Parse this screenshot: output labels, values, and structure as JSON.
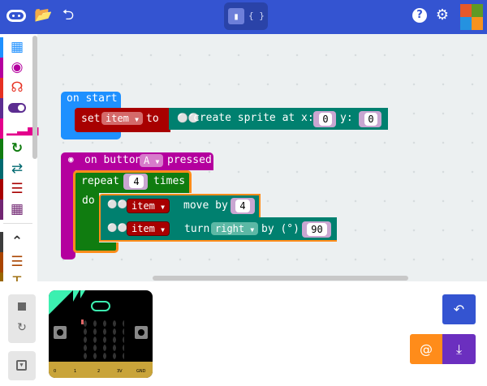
{
  "header": {
    "icons": [
      "microbit-logo-icon",
      "folder-open-icon",
      "share-icon",
      "help-icon",
      "gear-icon",
      "microsoft-logo-icon"
    ],
    "editor_toggle": {
      "blocks_icon": "puzzle-icon",
      "code_label": "{ }",
      "selected": "blocks"
    },
    "brand_colors": [
      "#f25022",
      "#7fba00",
      "#00a4ef",
      "#ffb900"
    ],
    "color": "#3454d1"
  },
  "toolbox": {
    "categories": [
      {
        "name": "Basic",
        "icon": "grid-icon",
        "color": "#1e90ff"
      },
      {
        "name": "Input",
        "icon": "target-icon",
        "color": "#b4009e"
      },
      {
        "name": "Music",
        "icon": "headphones-icon",
        "color": "#e63022"
      },
      {
        "name": "Led",
        "icon": "toggle-icon",
        "color": "#5c2d91"
      },
      {
        "name": "Radio",
        "icon": "signal-icon",
        "color": "#e3008c"
      },
      {
        "name": "Loops",
        "icon": "refresh-icon",
        "color": "#107c10"
      },
      {
        "name": "Logic",
        "icon": "shuffle-icon",
        "color": "#006970"
      },
      {
        "name": "Variables",
        "icon": "lines-icon",
        "color": "#a80000"
      },
      {
        "name": "Math",
        "icon": "calculator-icon",
        "color": "#712672"
      },
      {
        "name": "Advanced",
        "icon": "chevron-up-icon",
        "color": "#3c3c3c"
      },
      {
        "name": "Arrays",
        "icon": "numbered-list-icon",
        "color": "#a94400"
      },
      {
        "name": "Text",
        "icon": "text-icon",
        "color": "#996600"
      }
    ]
  },
  "blocks": {
    "on_start": {
      "label": "on start",
      "color": "#1e90ff"
    },
    "set": {
      "set": "set",
      "var": "item",
      "to": "to",
      "color": "#a80000"
    },
    "create_sprite": {
      "label": "create sprite at x:",
      "x": "0",
      "y_label": "y:",
      "y": "0",
      "color": "#00806f"
    },
    "on_button": {
      "label_pre": "on button",
      "button": "A",
      "label_post": "pressed",
      "color": "#b4009e"
    },
    "repeat": {
      "label": "repeat",
      "count": "4",
      "times": "times",
      "do": "do",
      "color": "#107c10",
      "highlight": "#ff8c1a"
    },
    "move": {
      "var": "item",
      "label": "move by",
      "value": "4"
    },
    "turn": {
      "var": "item",
      "label": "turn",
      "direction": "right",
      "by": "by (°)",
      "value": "90"
    }
  },
  "simulator": {
    "pins": [
      "0",
      "1",
      "2",
      "3V",
      "GND"
    ],
    "controls": [
      "stop-icon",
      "restart-icon",
      "collapse-icon"
    ]
  },
  "actions": {
    "undo": "undo-icon",
    "slow": "snail-icon",
    "download": "download-icon",
    "colors": {
      "undo": "#3454d1",
      "slow": "#ff8c1a",
      "download": "#6b2fbf"
    }
  }
}
